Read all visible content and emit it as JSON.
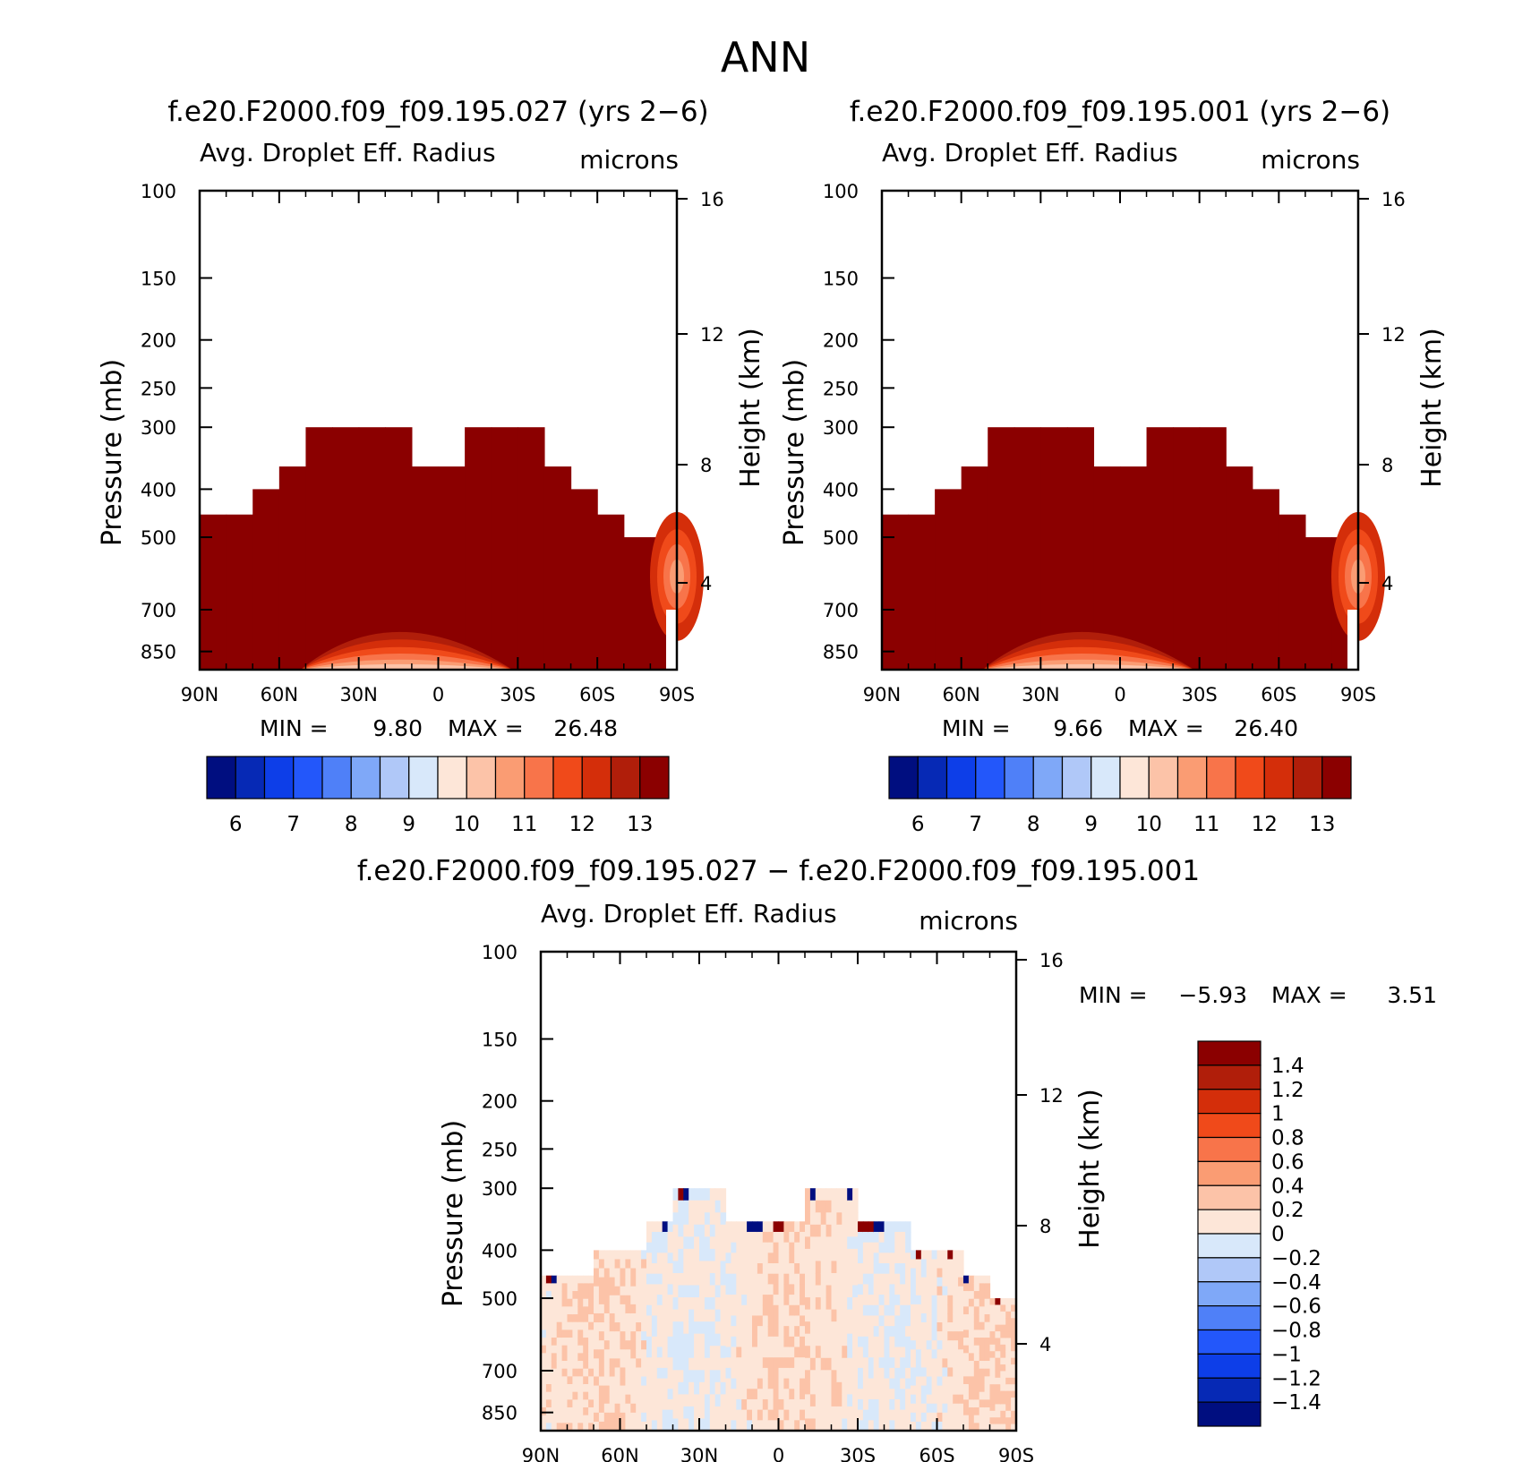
{
  "figure": {
    "title": "ANN"
  },
  "chart_data": [
    {
      "type": "contour",
      "title": "f.e20.F2000.f09_f09.195.027 (yrs 2−6)",
      "variable": "Avg. Droplet Eff. Radius",
      "units": "microns",
      "ylabel": "Pressure (mb)",
      "y2label": "Height (km)",
      "x_ticks": [
        "90N",
        "60N",
        "30N",
        "0",
        "30S",
        "60S",
        "90S"
      ],
      "x_range": [
        90,
        -90
      ],
      "y_ticks": [
        100,
        150,
        200,
        250,
        300,
        400,
        500,
        700,
        850
      ],
      "y_range": [
        100,
        925
      ],
      "y2_ticks": [
        16,
        12,
        8,
        4
      ],
      "min_label": "MIN =",
      "min_value": "9.80",
      "max_label": "MAX =",
      "max_value": "26.48",
      "colorbar_labels": [
        "6",
        "7",
        "8",
        "9",
        "10",
        "11",
        "12",
        "13"
      ],
      "colorbar_colors": [
        "#000e80",
        "#0629b5",
        "#0d3ee8",
        "#2357fa",
        "#4f80f8",
        "#7fa8f8",
        "#b0c8f8",
        "#d8e8fa",
        "#fde6d8",
        "#fcc3a8",
        "#fa9c73",
        "#f8744a",
        "#f04a1a",
        "#d42e0a",
        "#b01e0a",
        "#8b0000"
      ],
      "cloud_top_mb": [
        450,
        450,
        400,
        360,
        300,
        300,
        300,
        300,
        360,
        360,
        300,
        300,
        300,
        360,
        400,
        450,
        500,
        500
      ]
    },
    {
      "type": "contour",
      "title": "f.e20.F2000.f09_f09.195.001 (yrs 2−6)",
      "variable": "Avg. Droplet Eff. Radius",
      "units": "microns",
      "ylabel": "Pressure (mb)",
      "y2label": "Height (km)",
      "x_ticks": [
        "90N",
        "60N",
        "30N",
        "0",
        "30S",
        "60S",
        "90S"
      ],
      "x_range": [
        90,
        -90
      ],
      "y_ticks": [
        100,
        150,
        200,
        250,
        300,
        400,
        500,
        700,
        850
      ],
      "y_range": [
        100,
        925
      ],
      "y2_ticks": [
        16,
        12,
        8,
        4
      ],
      "min_label": "MIN =",
      "min_value": "9.66",
      "max_label": "MAX =",
      "max_value": "26.40",
      "colorbar_labels": [
        "6",
        "7",
        "8",
        "9",
        "10",
        "11",
        "12",
        "13"
      ],
      "colorbar_colors": [
        "#000e80",
        "#0629b5",
        "#0d3ee8",
        "#2357fa",
        "#4f80f8",
        "#7fa8f8",
        "#b0c8f8",
        "#d8e8fa",
        "#fde6d8",
        "#fcc3a8",
        "#fa9c73",
        "#f8744a",
        "#f04a1a",
        "#d42e0a",
        "#b01e0a",
        "#8b0000"
      ],
      "cloud_top_mb": [
        450,
        450,
        400,
        360,
        300,
        300,
        300,
        300,
        360,
        360,
        300,
        300,
        300,
        360,
        400,
        450,
        500,
        500
      ]
    },
    {
      "type": "contour",
      "title": "f.e20.F2000.f09_f09.195.027 − f.e20.F2000.f09_f09.195.001",
      "variable": "Avg. Droplet Eff. Radius",
      "units": "microns",
      "ylabel": "Pressure (mb)",
      "y2label": "Height (km)",
      "x_ticks": [
        "90N",
        "60N",
        "30N",
        "0",
        "30S",
        "60S",
        "90S"
      ],
      "x_range": [
        90,
        -90
      ],
      "y_ticks": [
        100,
        150,
        200,
        250,
        300,
        400,
        500,
        700,
        850
      ],
      "y_range": [
        100,
        925
      ],
      "y2_ticks": [
        16,
        12,
        8,
        4
      ],
      "min_label": "MIN =",
      "min_value": "−5.93",
      "max_label": "MAX =",
      "max_value": "3.51",
      "colorbar_labels": [
        "1.4",
        "1.2",
        "1",
        "0.8",
        "0.6",
        "0.4",
        "0.2",
        "0",
        "−0.2",
        "−0.4",
        "−0.6",
        "−0.8",
        "−1",
        "−1.2",
        "−1.4"
      ],
      "colorbar_colors": [
        "#8b0000",
        "#b01e0a",
        "#d42e0a",
        "#f04a1a",
        "#f8744a",
        "#fa9c73",
        "#fcc3a8",
        "#fde6d8",
        "#d8e8fa",
        "#b0c8f8",
        "#7fa8f8",
        "#4f80f8",
        "#2357fa",
        "#0d3ee8",
        "#0629b5",
        "#000e80"
      ],
      "cloud_top_mb": [
        450,
        450,
        400,
        400,
        350,
        300,
        300,
        350,
        350,
        350,
        300,
        300,
        350,
        350,
        400,
        400,
        450,
        500
      ]
    }
  ]
}
